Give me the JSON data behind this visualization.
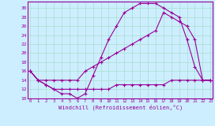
{
  "xlabel": "Windchill (Refroidissement éolien,°C)",
  "bg_color": "#cceeff",
  "grid_color": "#aaddcc",
  "line_color": "#990099",
  "x_ticks": [
    0,
    1,
    2,
    3,
    4,
    5,
    6,
    7,
    8,
    9,
    10,
    11,
    12,
    13,
    14,
    15,
    16,
    17,
    18,
    19,
    20,
    21,
    22,
    23
  ],
  "y_ticks": [
    10,
    12,
    14,
    16,
    18,
    20,
    22,
    24,
    26,
    28,
    30
  ],
  "xlim": [
    -0.3,
    23.3
  ],
  "ylim": [
    10,
    31.5
  ],
  "line1_x": [
    0,
    1,
    2,
    3,
    4,
    5,
    6,
    7,
    8,
    9,
    10,
    11,
    12,
    13,
    14,
    15,
    16,
    17,
    18,
    19,
    20,
    21,
    22,
    23
  ],
  "line1_y": [
    16,
    14,
    13,
    12,
    11,
    11,
    10,
    11,
    15,
    19,
    23,
    26,
    29,
    30,
    31,
    31,
    31,
    30,
    29,
    28,
    23,
    17,
    14,
    14
  ],
  "line2_x": [
    0,
    1,
    2,
    3,
    4,
    5,
    6,
    7,
    8,
    9,
    10,
    11,
    12,
    13,
    14,
    15,
    16,
    17,
    18,
    19,
    20,
    21,
    22,
    23
  ],
  "line2_y": [
    16,
    14,
    14,
    14,
    14,
    14,
    14,
    16,
    17,
    18,
    19,
    20,
    21,
    22,
    23,
    24,
    25,
    29,
    28,
    27,
    26,
    23,
    14,
    14
  ],
  "line3_x": [
    0,
    1,
    2,
    3,
    4,
    5,
    6,
    7,
    8,
    9,
    10,
    11,
    12,
    13,
    14,
    15,
    16,
    17,
    18,
    19,
    20,
    21,
    22,
    23
  ],
  "line3_y": [
    16,
    14,
    13,
    12,
    12,
    12,
    12,
    12,
    12,
    12,
    12,
    13,
    13,
    13,
    13,
    13,
    13,
    13,
    14,
    14,
    14,
    14,
    14,
    14
  ]
}
